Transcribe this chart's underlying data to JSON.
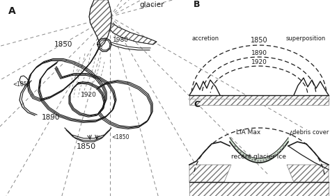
{
  "background_color": "#ffffff",
  "line_color": "#1a1a1a",
  "label_A": "A",
  "label_B": "B",
  "label_C": "C",
  "label_glacier": "glacier",
  "label_accretion": "accretion",
  "label_superposition": "superposition",
  "label_1850_B": "1850",
  "label_1890_B": "1890",
  "label_1920_B": "1920",
  "label_LIAMax": "LIA Max",
  "label_debris": "debris cover",
  "label_recent": "recent glacier ice",
  "figsize": [
    4.74,
    2.82
  ],
  "dpi": 100
}
